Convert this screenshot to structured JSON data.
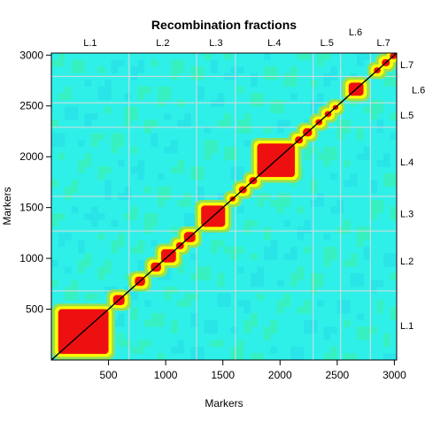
{
  "chart_data": {
    "type": "heatmap",
    "title": "Recombination fractions",
    "xlabel": "Markers",
    "ylabel": "Markers",
    "xlim": [
      0,
      3020
    ],
    "ylim": [
      0,
      3020
    ],
    "x_ticks": [
      {
        "value": 500,
        "label": "500"
      },
      {
        "value": 1000,
        "label": "1000"
      },
      {
        "value": 1500,
        "label": "1500"
      },
      {
        "value": 2000,
        "label": "2000"
      },
      {
        "value": 2500,
        "label": "2500"
      },
      {
        "value": 3000,
        "label": "3000"
      }
    ],
    "y_ticks": [
      {
        "value": 500,
        "label": "500"
      },
      {
        "value": 1000,
        "label": "1000"
      },
      {
        "value": 1500,
        "label": "1500"
      },
      {
        "value": 2000,
        "label": "2000"
      },
      {
        "value": 2500,
        "label": "2500"
      },
      {
        "value": 3000,
        "label": "3000"
      }
    ],
    "linkage_groups": [
      {
        "label": "L.1",
        "start": 0,
        "end": 680
      },
      {
        "label": "L.2",
        "start": 680,
        "end": 1270
      },
      {
        "label": "L.3",
        "start": 1270,
        "end": 1610
      },
      {
        "label": "L.4",
        "start": 1610,
        "end": 2290
      },
      {
        "label": "L.5",
        "start": 2290,
        "end": 2530
      },
      {
        "label": "L.6",
        "start": 2530,
        "end": 2790
      },
      {
        "label": "L.7",
        "start": 2790,
        "end": 3020
      }
    ],
    "high_linkage_blocks": [
      {
        "start": 60,
        "end": 500
      },
      {
        "start": 540,
        "end": 640
      },
      {
        "start": 730,
        "end": 820
      },
      {
        "start": 870,
        "end": 960
      },
      {
        "start": 960,
        "end": 1090
      },
      {
        "start": 1090,
        "end": 1160
      },
      {
        "start": 1160,
        "end": 1260
      },
      {
        "start": 1310,
        "end": 1520
      },
      {
        "start": 1560,
        "end": 1610
      },
      {
        "start": 1640,
        "end": 1710
      },
      {
        "start": 1730,
        "end": 1800
      },
      {
        "start": 1800,
        "end": 2130
      },
      {
        "start": 2130,
        "end": 2200
      },
      {
        "start": 2200,
        "end": 2280
      },
      {
        "start": 2310,
        "end": 2370
      },
      {
        "start": 2390,
        "end": 2450
      },
      {
        "start": 2460,
        "end": 2510
      },
      {
        "start": 2600,
        "end": 2730
      },
      {
        "start": 2820,
        "end": 2880
      },
      {
        "start": 2890,
        "end": 2960
      },
      {
        "start": 2960,
        "end": 3020
      }
    ],
    "colors": {
      "background": "#2ff0e8",
      "background_alt": "#28e0e8",
      "weak": "#3af0b0",
      "medium": "#9ae050",
      "high": "#ffff00",
      "block": "#ee1010",
      "diagonal": "#000000",
      "grid": "#dcdcdc"
    },
    "grid": true
  }
}
